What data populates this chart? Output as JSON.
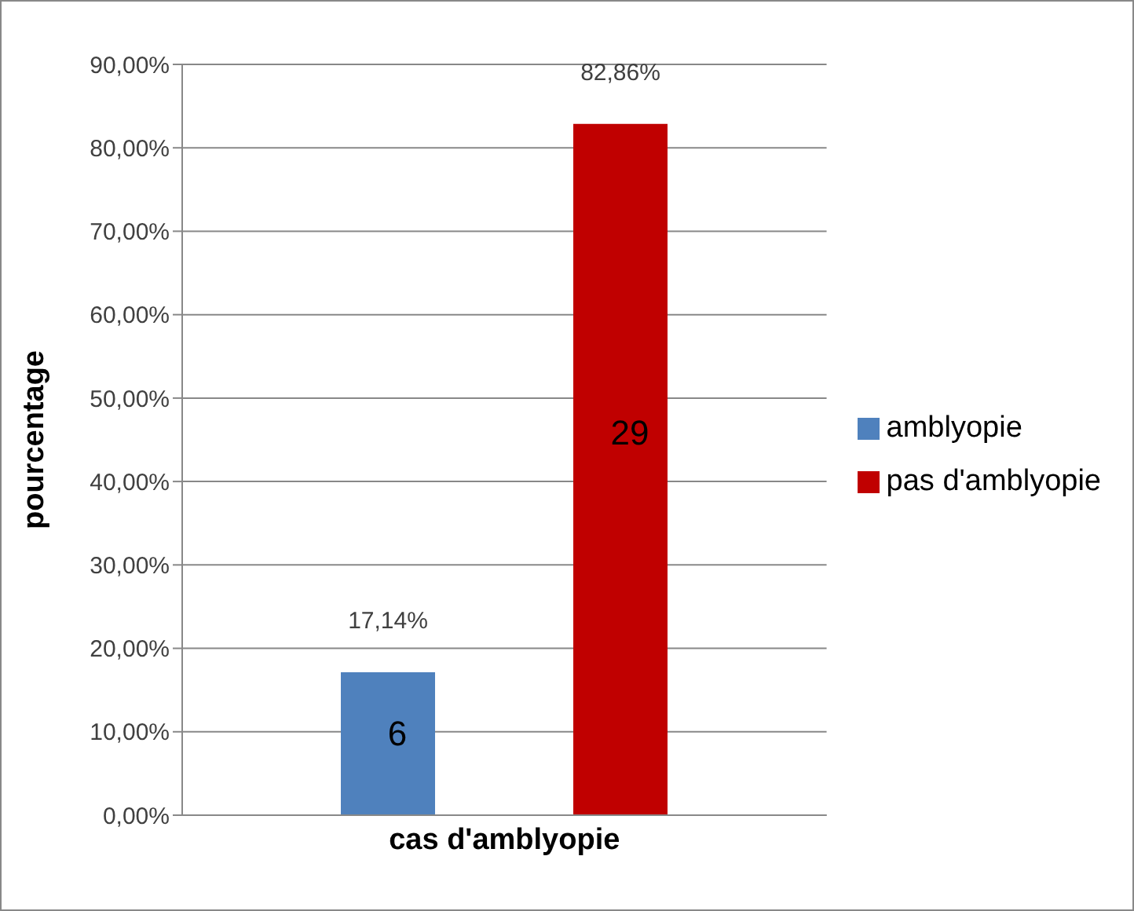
{
  "chart_data": {
    "type": "bar",
    "ylabel": "pourcentage",
    "categories": [
      "cas d'amblyopie"
    ],
    "series": [
      {
        "name": "amblyopie",
        "color": "#4f81bd",
        "values": [
          17.14
        ],
        "value_labels": [
          "17,14%"
        ]
      },
      {
        "name": "pas d'amblyopie",
        "color": "#c00000",
        "values": [
          82.86
        ],
        "value_labels": [
          "82,86%"
        ]
      }
    ],
    "annotations": [
      "6",
      "29"
    ],
    "ylim": [
      0,
      90
    ],
    "yticks": [
      {
        "value": 0,
        "label": "0,00%"
      },
      {
        "value": 10,
        "label": "10,00%"
      },
      {
        "value": 20,
        "label": "20,00%"
      },
      {
        "value": 30,
        "label": "30,00%"
      },
      {
        "value": 40,
        "label": "40,00%"
      },
      {
        "value": 50,
        "label": "50,00%"
      },
      {
        "value": 60,
        "label": "60,00%"
      },
      {
        "value": 70,
        "label": "70,00%"
      },
      {
        "value": 80,
        "label": "80,00%"
      },
      {
        "value": 90,
        "label": "90,00%"
      }
    ],
    "grid": "y",
    "legend": "right"
  }
}
